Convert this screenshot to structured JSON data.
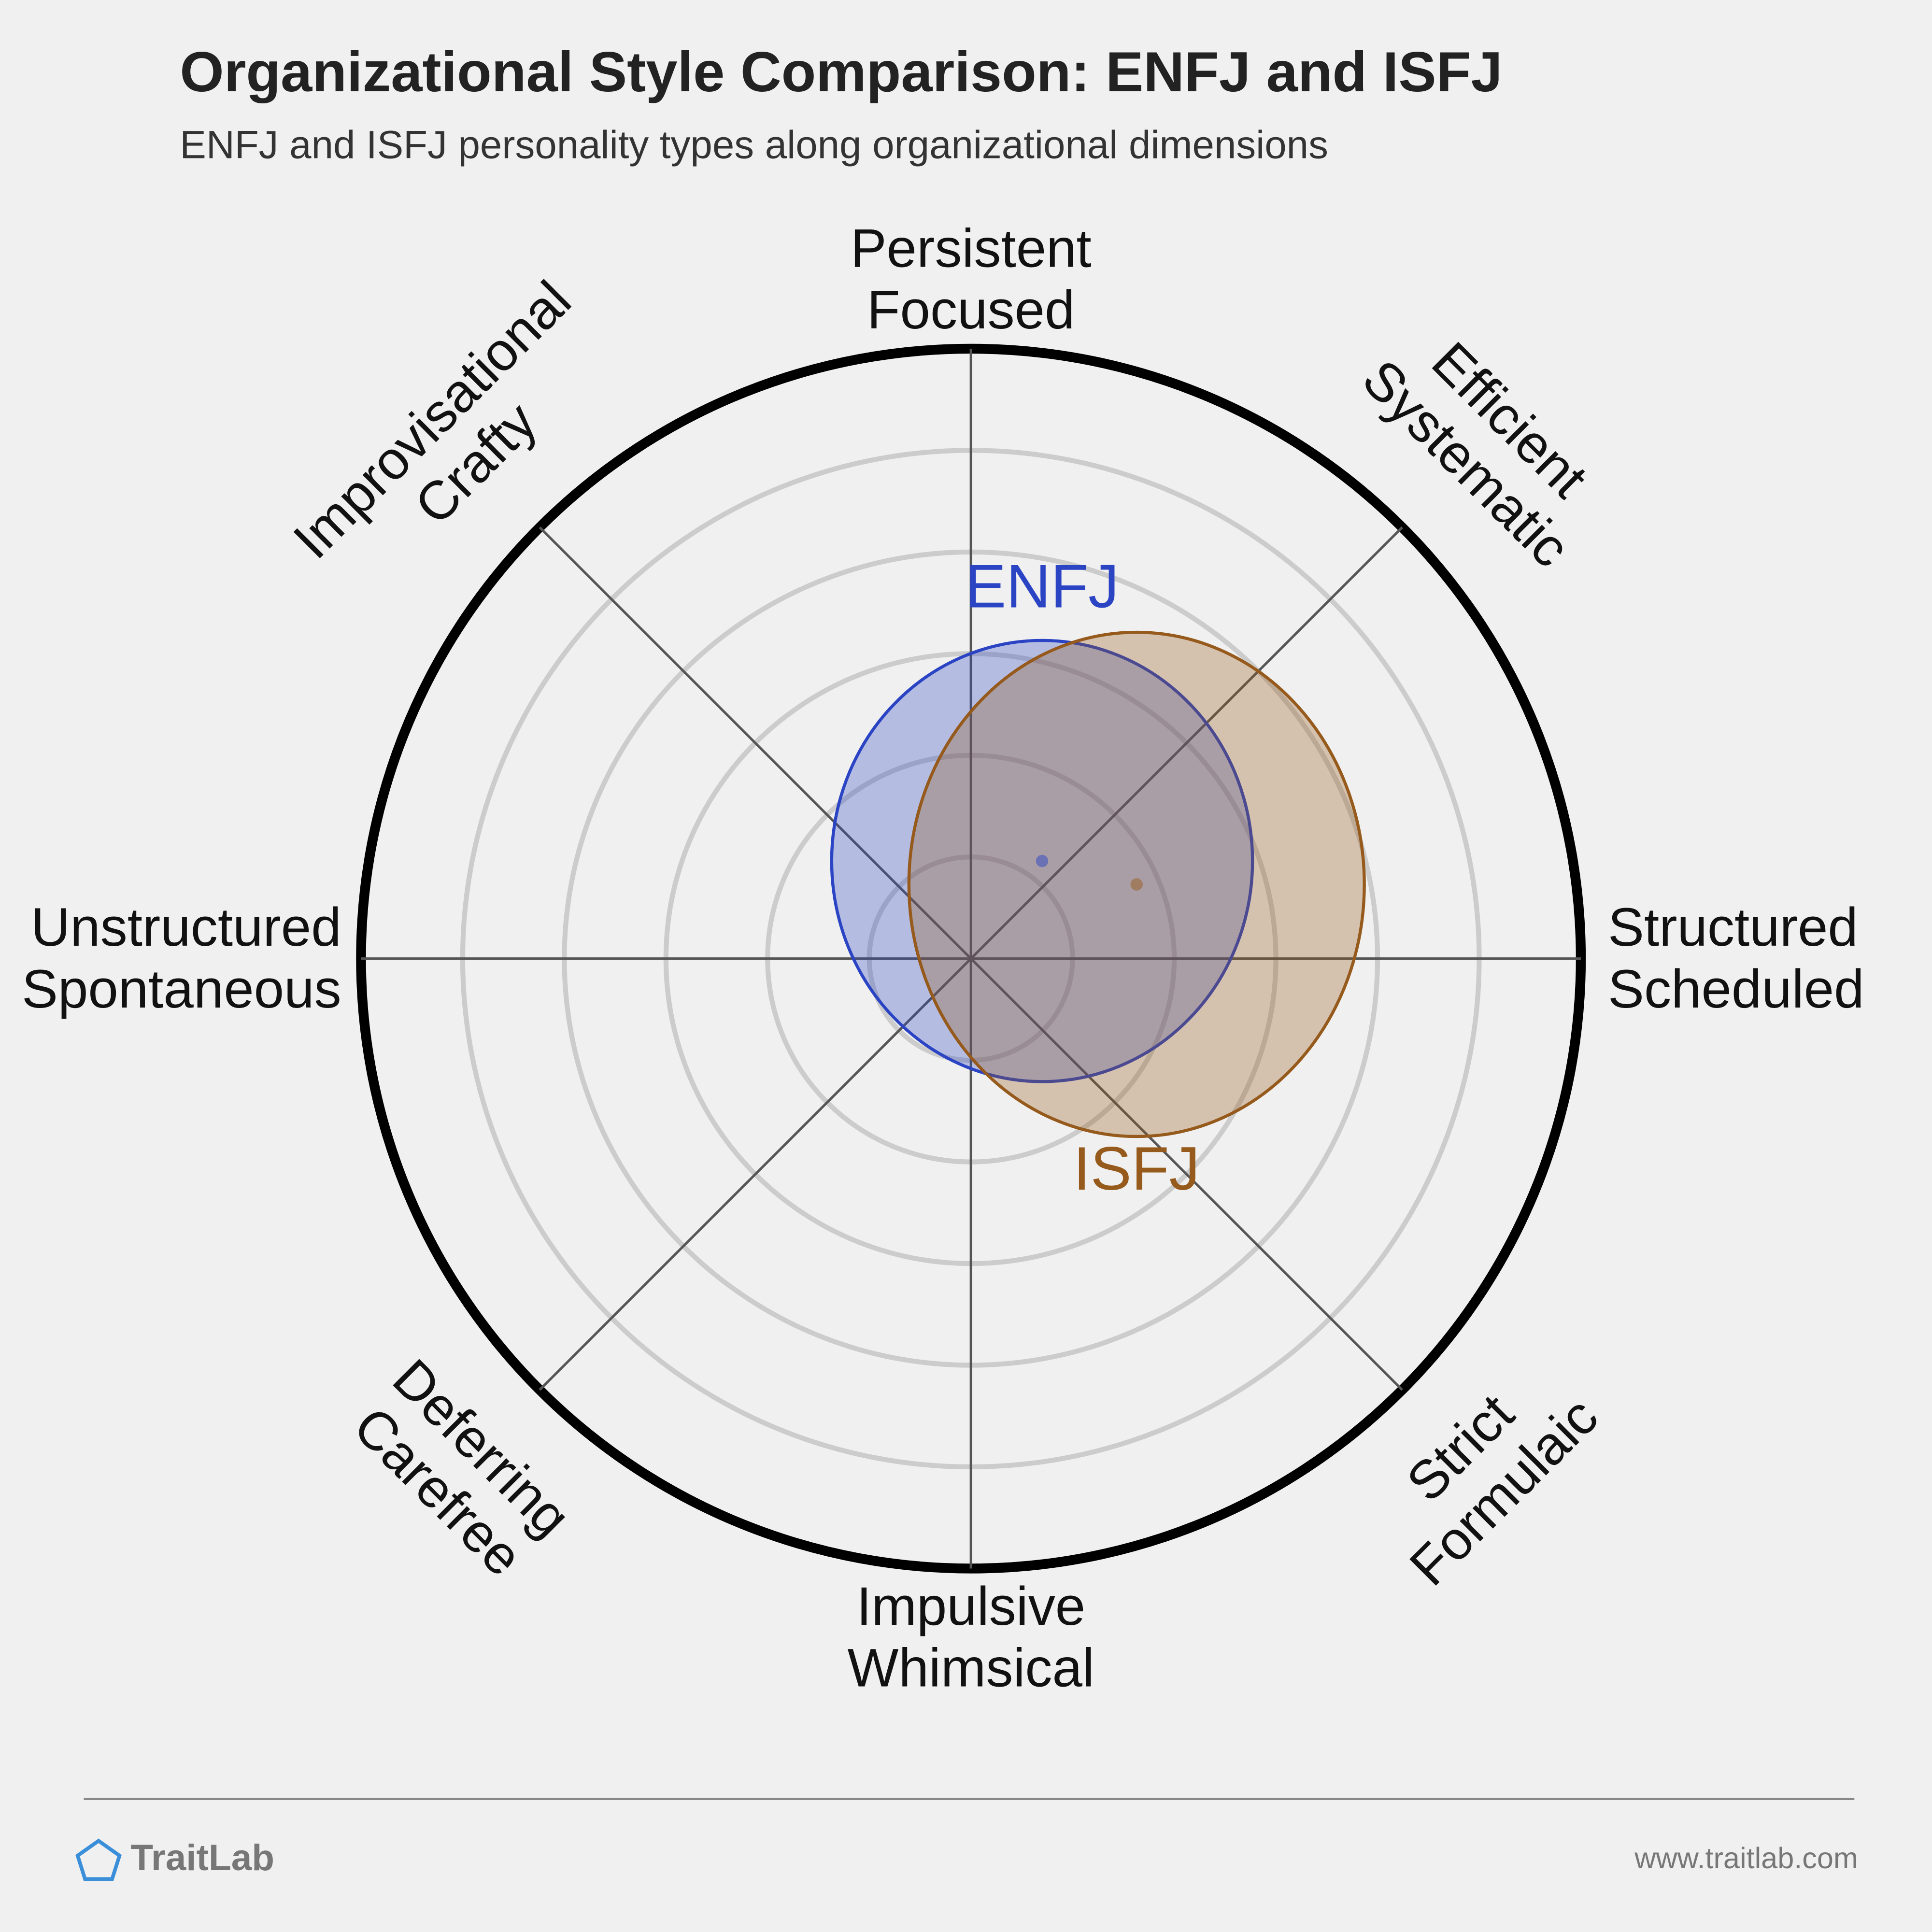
{
  "chart_data": {
    "type": "ellipse-compass",
    "title": "Organizational Style Comparison: ENFJ and ISFJ",
    "subtitle": "ENFJ and ISFJ personality types along organizational dimensions",
    "rlim": [
      0,
      6
    ],
    "rings": [
      1,
      2,
      3,
      4,
      5
    ],
    "axes": [
      [
        "Persistent",
        "Focused"
      ],
      [
        "Efficient",
        "Systematic"
      ],
      [
        "Structured",
        "Scheduled"
      ],
      [
        "Strict",
        "Formulaic"
      ],
      [
        "Impulsive",
        "Whimsical"
      ],
      [
        "Deferring",
        "Carefree"
      ],
      [
        "Unstructured",
        "Spontaneous"
      ],
      [
        "Improvisational",
        "Crafty"
      ]
    ],
    "series": [
      {
        "name": "ENFJ",
        "color": "#2b44c4",
        "x": 0.7,
        "y": 0.96,
        "rx": 2.07,
        "ry": 2.17,
        "label_position": "top"
      },
      {
        "name": "ISFJ",
        "color": "#955a1c",
        "x": 1.63,
        "y": 0.73,
        "rx": 2.24,
        "ry": 2.48,
        "label_position": "bottom"
      }
    ]
  },
  "footer": {
    "brand": "TraitLab",
    "url": "www.traitlab.com"
  }
}
